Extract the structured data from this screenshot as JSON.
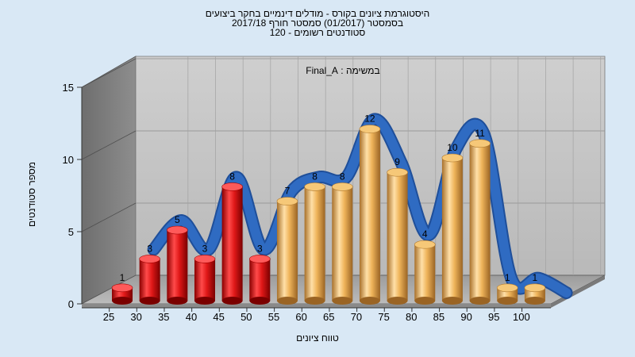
{
  "chart_data": {
    "type": "bar",
    "title_lines": [
      "היסטוגרמת ציונים בקורס - מודלים דינמיים בחקר ביצועים",
      "בסמסטר  (01/2017)  סמסטר חורף 2017/18",
      "סטודנטים רשומים - 120"
    ],
    "subtitle": "במשימה : Final_A",
    "xlabel": "טווח ציונים",
    "ylabel": "מספר סטודנטים",
    "ylim": [
      0,
      15
    ],
    "yticks": [
      0,
      5,
      10,
      15
    ],
    "categories": [
      "25",
      "30",
      "35",
      "40",
      "45",
      "50",
      "55",
      "60",
      "65",
      "70",
      "75",
      "80",
      "85",
      "90",
      "95",
      "100"
    ],
    "values": [
      1,
      3,
      5,
      3,
      8,
      3,
      7,
      8,
      8,
      12,
      9,
      4,
      10,
      11,
      1,
      1
    ],
    "bar_colors": [
      "#d81414",
      "#d81414",
      "#d81414",
      "#d81414",
      "#d81414",
      "#d81414",
      "#e5a94a",
      "#e5a94a",
      "#e5a94a",
      "#e5a94a",
      "#e5a94a",
      "#e5a94a",
      "#e5a94a",
      "#e5a94a",
      "#e5a94a",
      "#e5a94a"
    ],
    "curve_color": "#2f6bc2",
    "grid": true
  }
}
